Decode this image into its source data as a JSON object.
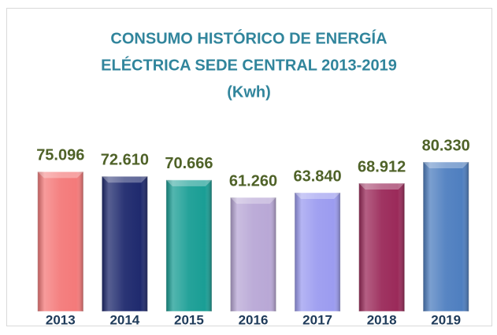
{
  "chart_data": {
    "type": "bar",
    "title": [
      "CONSUMO HISTÓRICO DE ENERGÍA",
      "ELÉCTRICA SEDE CENTRAL 2013-2019",
      "(Kwh)"
    ],
    "categories": [
      "2013",
      "2014",
      "2015",
      "2016",
      "2017",
      "2018",
      "2019"
    ],
    "values": [
      75096,
      72610,
      70666,
      61260,
      63840,
      68912,
      80330
    ],
    "value_labels": [
      "75.096",
      "72.610",
      "70.666",
      "61.260",
      "63.840",
      "68.912",
      "80.330"
    ],
    "colors": [
      "#f47a7a",
      "#1f2a6e",
      "#1a9e95",
      "#b9a8d6",
      "#9c9cf0",
      "#9b2a5a",
      "#4f7fc0"
    ]
  }
}
